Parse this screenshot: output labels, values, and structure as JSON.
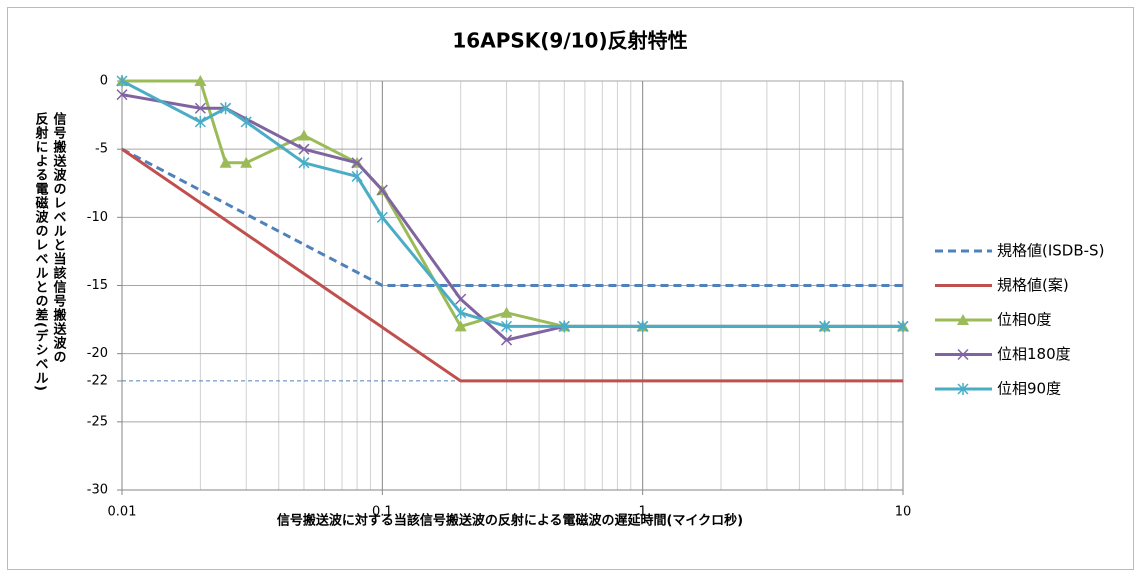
{
  "chart_data": {
    "type": "line",
    "title": "16APSK(9/10)反射特性",
    "xlabel": "信号搬送波に対する当該信号搬送波の反射による電磁波の遅延時間(マイクロ秒)",
    "ylabel": [
      "信号搬送波のレベルと当該信号搬送波の",
      "反射による電磁波のレベルとの差(デシベル)"
    ],
    "xscale": "log",
    "xlim": [
      0.01,
      10
    ],
    "xticks": [
      0.01,
      0.1,
      1,
      10
    ],
    "ylim": [
      -30,
      0
    ],
    "yticks": [
      0,
      -5,
      -10,
      -15,
      -20,
      -22,
      -25,
      -30
    ],
    "grid": true,
    "legend": "right",
    "reference_line": {
      "y": -22,
      "x_end": 0.2,
      "color": "#4f81bd"
    },
    "series": [
      {
        "name": "規格値(ISDB-S)",
        "color": "#4f81bd",
        "dash": true,
        "marker": "none",
        "x": [
          0.01,
          0.1,
          10
        ],
        "values": [
          -5,
          -15,
          -15
        ]
      },
      {
        "name": "規格値(案)",
        "color": "#c0504d",
        "dash": false,
        "marker": "none",
        "x": [
          0.01,
          0.2,
          10
        ],
        "values": [
          -5,
          -22,
          -22
        ]
      },
      {
        "name": "位相0度",
        "color": "#9bbb59",
        "dash": false,
        "marker": "triangle",
        "x": [
          0.01,
          0.02,
          0.025,
          0.03,
          0.05,
          0.08,
          0.1,
          0.2,
          0.3,
          0.5,
          1,
          5,
          10
        ],
        "values": [
          0,
          0,
          -6,
          -6,
          -4,
          -6,
          -8,
          -18,
          -17,
          -18,
          -18,
          -18,
          -18
        ]
      },
      {
        "name": "位相180度",
        "color": "#8064a2",
        "dash": false,
        "marker": "x",
        "x": [
          0.01,
          0.02,
          0.025,
          0.05,
          0.08,
          0.1,
          0.2,
          0.3,
          0.5,
          1,
          5,
          10
        ],
        "values": [
          -1,
          -2,
          -2,
          -5,
          -6,
          -8,
          -16,
          -19,
          -18,
          -18,
          -18,
          -18
        ]
      },
      {
        "name": "位相90度",
        "color": "#4bacc6",
        "dash": false,
        "marker": "asterisk",
        "x": [
          0.01,
          0.02,
          0.025,
          0.03,
          0.05,
          0.08,
          0.1,
          0.2,
          0.3,
          0.5,
          1,
          5,
          10
        ],
        "values": [
          0,
          -3,
          -2,
          -3,
          -6,
          -7,
          -10,
          -17,
          -18,
          -18,
          -18,
          -18,
          -18
        ]
      }
    ]
  }
}
